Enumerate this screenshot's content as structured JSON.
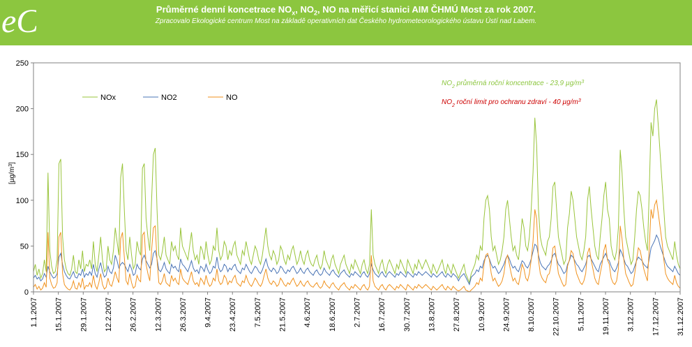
{
  "header": {
    "logo_text": "eC",
    "title_pre": "Průměrné denní koncetrace NO",
    "title_sub1": "x",
    "title_mid": ", NO",
    "title_sub2": "2",
    "title_post": ", NO na měřicí stanici AIM ČHMÚ Most za rok 2007.",
    "subtitle": "Zpracovalo Ekologické centrum Most na základě operativních dat Českého hydrometeorologického ústavu Ústí nad Labem."
  },
  "chart_data": {
    "type": "line",
    "title": "Průměrné denní koncetrace NOx, NO2, NO na měřicí stanici AIM ČHMÚ Most za rok 2007.",
    "ylabel": "[µg/m³]",
    "ylabel_main": "[µg/m",
    "ylabel_sup": "3",
    "ylabel_end": "]",
    "ylim": [
      0,
      250
    ],
    "yticks": [
      0,
      50,
      100,
      150,
      200,
      250
    ],
    "grid": false,
    "legend_placement": "top-left",
    "x_start": "1.1.2007",
    "x_end": "31.12.2007",
    "x_tick_labels": [
      "1.1.2007",
      "15.1.2007",
      "29.1.2007",
      "12.2.2007",
      "26.2.2007",
      "12.3.2007",
      "26.3.2007",
      "9.4.2007",
      "23.4.2007",
      "7.5.2007",
      "21.5.2007",
      "4.6.2007",
      "18.6.2007",
      "2.7.2007",
      "16.7.2007",
      "30.7.2007",
      "13.8.2007",
      "27.8.2007",
      "10.9.2007",
      "24.9.2007",
      "8.10.2007",
      "22.10.2007",
      "5.11.2007",
      "19.11.2007",
      "3.12.2007",
      "17.12.2007",
      "31.12.2007"
    ],
    "annotations": [
      {
        "pre": "NO",
        "sub": "2",
        "post": " průměrná roční koncentrace - 23,9 µg/m",
        "sup": "3",
        "color": "#8cc63f"
      },
      {
        "pre": "NO",
        "sub": "2",
        "post": " roční limit pro ochranu zdraví - 40 µg/m",
        "sup": "3",
        "color": "#cc0000"
      }
    ],
    "series": [
      {
        "name": "NOx",
        "color": "#99c43b",
        "values": [
          22,
          30,
          18,
          25,
          15,
          20,
          35,
          22,
          130,
          45,
          28,
          20,
          22,
          35,
          140,
          145,
          60,
          35,
          25,
          20,
          18,
          25,
          40,
          22,
          20,
          35,
          25,
          45,
          22,
          30,
          28,
          35,
          25,
          55,
          30,
          22,
          40,
          60,
          35,
          22,
          25,
          50,
          35,
          30,
          45,
          70,
          55,
          40,
          125,
          140,
          90,
          45,
          35,
          60,
          40,
          25,
          30,
          55,
          45,
          40,
          135,
          140,
          80,
          60,
          45,
          100,
          150,
          157,
          90,
          40,
          35,
          45,
          60,
          40,
          35,
          30,
          55,
          45,
          50,
          40,
          35,
          70,
          50,
          45,
          40,
          35,
          50,
          65,
          45,
          35,
          40,
          30,
          50,
          45,
          35,
          55,
          40,
          30,
          35,
          50,
          45,
          70,
          45,
          35,
          40,
          55,
          50,
          35,
          45,
          40,
          50,
          55,
          40,
          35,
          30,
          45,
          40,
          55,
          45,
          35,
          30,
          40,
          50,
          45,
          35,
          30,
          40,
          55,
          70,
          50,
          40,
          35,
          45,
          40,
          30,
          35,
          50,
          45,
          35,
          30,
          40,
          35,
          45,
          50,
          40,
          30,
          35,
          45,
          35,
          30,
          40,
          45,
          35,
          30,
          28,
          35,
          40,
          30,
          25,
          30,
          45,
          35,
          30,
          25,
          35,
          40,
          30,
          25,
          20,
          30,
          35,
          40,
          30,
          25,
          20,
          30,
          25,
          35,
          30,
          25,
          20,
          30,
          35,
          25,
          20,
          30,
          90,
          40,
          30,
          25,
          20,
          30,
          35,
          25,
          20,
          30,
          35,
          30,
          25,
          20,
          30,
          25,
          35,
          30,
          25,
          20,
          35,
          30,
          25,
          20,
          30,
          25,
          35,
          30,
          25,
          30,
          35,
          30,
          25,
          20,
          30,
          25,
          20,
          25,
          30,
          35,
          25,
          20,
          30,
          25,
          20,
          30,
          25,
          20,
          15,
          20,
          25,
          30,
          20,
          15,
          10,
          20,
          25,
          30,
          40,
          35,
          50,
          45,
          80,
          100,
          105,
          90,
          60,
          45,
          50,
          40,
          30,
          35,
          45,
          60,
          90,
          100,
          80,
          60,
          45,
          50,
          40,
          35,
          55,
          80,
          70,
          50,
          45,
          60,
          90,
          130,
          190,
          160,
          90,
          60,
          50,
          45,
          40,
          55,
          60,
          80,
          115,
          120,
          90,
          60,
          50,
          40,
          30,
          35,
          70,
          85,
          110,
          100,
          80,
          60,
          50,
          40,
          35,
          45,
          60,
          100,
          115,
          90,
          70,
          50,
          40,
          35,
          60,
          80,
          105,
          120,
          90,
          80,
          50,
          40,
          35,
          45,
          70,
          155,
          130,
          90,
          60,
          50,
          40,
          30,
          35,
          60,
          90,
          110,
          105,
          90,
          70,
          55,
          45,
          110,
          185,
          170,
          200,
          210,
          180,
          150,
          120,
          90,
          60,
          50,
          45,
          40,
          35,
          55,
          40,
          30,
          25
        ]
      },
      {
        "name": "NO2",
        "color": "#4a74b5",
        "values": [
          15,
          18,
          14,
          16,
          12,
          14,
          20,
          16,
          28,
          22,
          18,
          15,
          16,
          20,
          38,
          42,
          30,
          22,
          18,
          15,
          14,
          18,
          22,
          16,
          15,
          20,
          18,
          25,
          16,
          20,
          18,
          22,
          18,
          30,
          20,
          16,
          25,
          32,
          22,
          16,
          18,
          28,
          22,
          20,
          26,
          40,
          34,
          26,
          30,
          32,
          30,
          26,
          22,
          30,
          25,
          18,
          20,
          30,
          26,
          24,
          36,
          40,
          34,
          30,
          26,
          30,
          42,
          45,
          36,
          24,
          22,
          26,
          32,
          25,
          22,
          20,
          30,
          26,
          28,
          24,
          22,
          36,
          30,
          28,
          25,
          22,
          28,
          34,
          26,
          22,
          24,
          20,
          28,
          26,
          22,
          30,
          24,
          20,
          22,
          28,
          26,
          38,
          26,
          22,
          24,
          30,
          28,
          22,
          26,
          24,
          28,
          30,
          24,
          22,
          20,
          26,
          24,
          30,
          26,
          22,
          20,
          24,
          28,
          26,
          22,
          20,
          24,
          30,
          36,
          28,
          24,
          22,
          26,
          24,
          20,
          22,
          28,
          26,
          22,
          20,
          24,
          22,
          26,
          28,
          24,
          20,
          22,
          26,
          22,
          20,
          24,
          26,
          22,
          20,
          18,
          22,
          24,
          20,
          18,
          20,
          26,
          22,
          20,
          18,
          22,
          24,
          20,
          18,
          16,
          20,
          22,
          24,
          20,
          18,
          16,
          20,
          18,
          22,
          20,
          18,
          16,
          20,
          22,
          18,
          16,
          20,
          30,
          24,
          20,
          18,
          16,
          20,
          22,
          18,
          16,
          20,
          22,
          20,
          18,
          16,
          20,
          18,
          22,
          20,
          18,
          16,
          22,
          20,
          18,
          16,
          20,
          18,
          22,
          20,
          18,
          20,
          22,
          20,
          18,
          16,
          20,
          18,
          16,
          18,
          20,
          22,
          18,
          16,
          20,
          18,
          16,
          20,
          18,
          16,
          12,
          16,
          18,
          20,
          16,
          12,
          8,
          16,
          18,
          20,
          24,
          22,
          28,
          26,
          34,
          38,
          40,
          36,
          30,
          26,
          28,
          24,
          20,
          22,
          26,
          30,
          36,
          40,
          36,
          30,
          26,
          28,
          24,
          22,
          28,
          34,
          32,
          28,
          26,
          30,
          36,
          44,
          52,
          50,
          40,
          32,
          28,
          26,
          24,
          28,
          30,
          34,
          40,
          42,
          36,
          30,
          28,
          24,
          20,
          22,
          30,
          34,
          40,
          38,
          34,
          30,
          28,
          24,
          22,
          26,
          30,
          38,
          40,
          36,
          32,
          28,
          24,
          22,
          30,
          34,
          38,
          42,
          36,
          34,
          28,
          24,
          22,
          26,
          32,
          46,
          42,
          36,
          30,
          28,
          24,
          20,
          22,
          28,
          34,
          38,
          36,
          34,
          30,
          28,
          26,
          36,
          48,
          52,
          56,
          62,
          58,
          50,
          44,
          38,
          32,
          28,
          26,
          24,
          22,
          28,
          24,
          20,
          18
        ]
      },
      {
        "name": "NO",
        "color": "#f0921e",
        "values": [
          5,
          8,
          3,
          6,
          2,
          4,
          10,
          5,
          65,
          15,
          8,
          4,
          5,
          10,
          60,
          65,
          20,
          8,
          5,
          3,
          2,
          5,
          12,
          4,
          3,
          10,
          5,
          15,
          3,
          7,
          6,
          10,
          5,
          18,
          7,
          3,
          10,
          20,
          8,
          3,
          5,
          15,
          8,
          6,
          13,
          22,
          15,
          10,
          58,
          65,
          38,
          12,
          8,
          20,
          10,
          4,
          6,
          18,
          13,
          11,
          62,
          65,
          30,
          20,
          12,
          45,
          70,
          72,
          35,
          10,
          8,
          12,
          20,
          10,
          8,
          6,
          18,
          12,
          15,
          10,
          8,
          25,
          15,
          12,
          10,
          8,
          15,
          22,
          12,
          8,
          10,
          6,
          15,
          12,
          8,
          18,
          10,
          6,
          8,
          15,
          12,
          25,
          12,
          8,
          10,
          18,
          15,
          8,
          12,
          10,
          15,
          18,
          10,
          8,
          6,
          12,
          10,
          18,
          12,
          8,
          6,
          10,
          15,
          12,
          8,
          6,
          10,
          18,
          25,
          15,
          10,
          8,
          12,
          10,
          6,
          8,
          15,
          12,
          8,
          6,
          10,
          8,
          12,
          15,
          10,
          6,
          8,
          12,
          8,
          6,
          10,
          12,
          8,
          6,
          5,
          8,
          10,
          6,
          4,
          6,
          12,
          8,
          6,
          4,
          8,
          10,
          6,
          4,
          2,
          6,
          8,
          10,
          6,
          4,
          2,
          6,
          4,
          8,
          6,
          4,
          2,
          6,
          8,
          4,
          2,
          6,
          40,
          12,
          6,
          4,
          2,
          6,
          8,
          4,
          2,
          6,
          8,
          6,
          4,
          2,
          6,
          4,
          8,
          6,
          4,
          2,
          8,
          6,
          4,
          2,
          6,
          4,
          8,
          6,
          4,
          6,
          8,
          6,
          4,
          2,
          6,
          4,
          2,
          4,
          6,
          8,
          4,
          2,
          6,
          4,
          2,
          6,
          4,
          2,
          1,
          2,
          4,
          6,
          2,
          1,
          0,
          2,
          4,
          6,
          10,
          8,
          15,
          12,
          30,
          40,
          42,
          35,
          20,
          12,
          15,
          10,
          6,
          8,
          12,
          20,
          35,
          40,
          30,
          20,
          12,
          15,
          10,
          8,
          18,
          30,
          25,
          15,
          12,
          20,
          35,
          55,
          90,
          80,
          35,
          20,
          15,
          12,
          10,
          18,
          20,
          30,
          48,
          50,
          35,
          20,
          15,
          10,
          6,
          8,
          28,
          35,
          45,
          42,
          30,
          20,
          15,
          10,
          8,
          12,
          20,
          42,
          48,
          35,
          25,
          15,
          10,
          8,
          20,
          30,
          45,
          52,
          35,
          30,
          15,
          10,
          8,
          12,
          25,
          72,
          58,
          35,
          20,
          15,
          10,
          6,
          8,
          20,
          35,
          48,
          45,
          35,
          25,
          18,
          12,
          48,
          90,
          80,
          95,
          100,
          85,
          70,
          55,
          35,
          20,
          15,
          12,
          10,
          8,
          18,
          10,
          6,
          4
        ]
      }
    ]
  }
}
